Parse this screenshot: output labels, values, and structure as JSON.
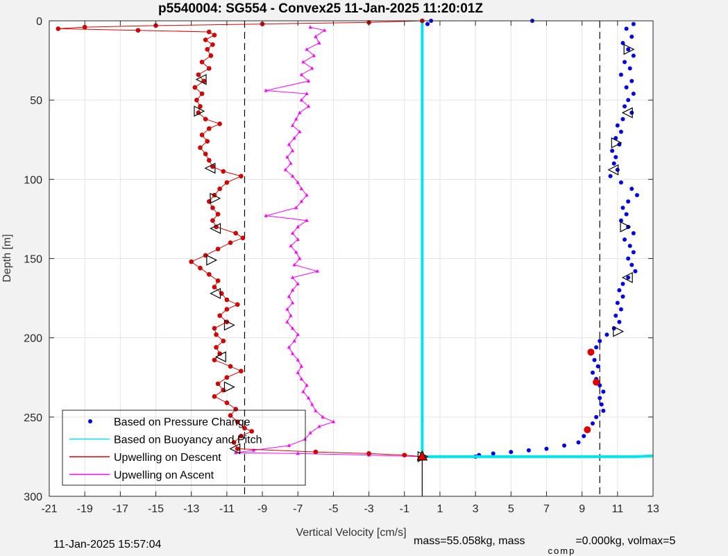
{
  "chart_data": {
    "type": "line",
    "title": "p5540004: SG554 - Convex25 11-Jan-2025 11:20:01Z",
    "xlabel": "Vertical Velocity [cm/s]",
    "ylabel": "Depth [m]",
    "xlim": [
      -21,
      13
    ],
    "ylim": [
      0,
      300
    ],
    "y_reversed": true,
    "grid": true,
    "x_ticks": [
      -21,
      -19,
      -17,
      -15,
      -13,
      -11,
      -9,
      -7,
      -5,
      -3,
      -1,
      1,
      3,
      5,
      7,
      9,
      11,
      13
    ],
    "y_ticks": [
      0,
      50,
      100,
      150,
      200,
      250,
      300
    ],
    "reference_lines": [
      -10,
      0,
      10
    ],
    "legend_placement": "bottom-left",
    "series": [
      {
        "name": "Based on Pressure Change",
        "color": "#0000ee",
        "style": "dots",
        "points": [
          [
            11.9,
            2
          ],
          [
            11.5,
            5
          ],
          [
            11.8,
            10
          ],
          [
            11.3,
            14
          ],
          [
            11.6,
            18
          ],
          [
            11.9,
            22
          ],
          [
            11.4,
            26
          ],
          [
            11.7,
            30
          ],
          [
            11.2,
            34
          ],
          [
            11.8,
            38
          ],
          [
            11.5,
            42
          ],
          [
            11.9,
            46
          ],
          [
            11.6,
            50
          ],
          [
            11.4,
            54
          ],
          [
            11.8,
            58
          ],
          [
            11.3,
            62
          ],
          [
            11.0,
            66
          ],
          [
            11.2,
            70
          ],
          [
            10.9,
            74
          ],
          [
            11.1,
            78
          ],
          [
            10.7,
            82
          ],
          [
            10.9,
            86
          ],
          [
            10.8,
            90
          ],
          [
            11.0,
            94
          ],
          [
            10.6,
            98
          ],
          [
            11.2,
            102
          ],
          [
            11.8,
            106
          ],
          [
            12.1,
            110
          ],
          [
            11.6,
            114
          ],
          [
            11.3,
            118
          ],
          [
            11.5,
            122
          ],
          [
            11.2,
            126
          ],
          [
            11.6,
            130
          ],
          [
            11.9,
            134
          ],
          [
            11.4,
            138
          ],
          [
            11.7,
            142
          ],
          [
            11.9,
            146
          ],
          [
            11.6,
            150
          ],
          [
            11.8,
            154
          ],
          [
            12.0,
            158
          ],
          [
            11.6,
            162
          ],
          [
            11.3,
            166
          ],
          [
            11.1,
            170
          ],
          [
            11.3,
            174
          ],
          [
            11.0,
            178
          ],
          [
            11.2,
            182
          ],
          [
            10.9,
            186
          ],
          [
            11.1,
            190
          ],
          [
            10.8,
            194
          ],
          [
            10.4,
            198
          ],
          [
            10.0,
            202
          ],
          [
            9.8,
            206
          ],
          [
            9.5,
            210
          ],
          [
            9.7,
            214
          ],
          [
            9.9,
            218
          ],
          [
            9.6,
            222
          ],
          [
            9.8,
            226
          ],
          [
            10.0,
            230
          ],
          [
            10.2,
            234
          ],
          [
            10.0,
            238
          ],
          [
            10.1,
            242
          ],
          [
            10.2,
            246
          ],
          [
            9.8,
            250
          ],
          [
            9.6,
            254
          ],
          [
            9.3,
            258
          ],
          [
            9.1,
            262
          ],
          [
            8.8,
            266
          ],
          [
            8.0,
            268
          ],
          [
            7.0,
            270
          ],
          [
            6.0,
            271
          ],
          [
            5.0,
            272
          ],
          [
            4.0,
            273
          ],
          [
            3.2,
            274
          ],
          [
            3.0,
            275
          ],
          [
            6.2,
            0
          ],
          [
            0.5,
            0
          ],
          [
            0.3,
            2
          ]
        ]
      },
      {
        "name": "Based on Buoyancy and Pitch",
        "color": "#00e5ee",
        "style": "line",
        "points": [
          [
            0,
            0
          ],
          [
            0,
            50
          ],
          [
            0,
            100
          ],
          [
            0,
            150
          ],
          [
            0,
            200
          ],
          [
            0,
            250
          ],
          [
            0,
            275
          ],
          [
            4,
            275
          ],
          [
            8,
            275
          ],
          [
            10,
            275
          ],
          [
            12,
            275
          ],
          [
            13,
            274.5
          ]
        ]
      },
      {
        "name": "Upwelling on Descent",
        "color": "#e00000",
        "style": "line-dots",
        "points": [
          [
            0,
            0
          ],
          [
            -3,
            1
          ],
          [
            -9,
            2
          ],
          [
            -15,
            3
          ],
          [
            -19,
            4
          ],
          [
            -20.5,
            5
          ],
          [
            -16,
            6
          ],
          [
            -12,
            7
          ],
          [
            -11.7,
            9
          ],
          [
            -12.2,
            12
          ],
          [
            -11.8,
            15
          ],
          [
            -12.1,
            18
          ],
          [
            -11.9,
            22
          ],
          [
            -12.4,
            26
          ],
          [
            -12.0,
            30
          ],
          [
            -12.6,
            34
          ],
          [
            -12.3,
            38
          ],
          [
            -12.8,
            42
          ],
          [
            -12.4,
            46
          ],
          [
            -12.7,
            50
          ],
          [
            -12.5,
            54
          ],
          [
            -12.6,
            58
          ],
          [
            -12.2,
            62
          ],
          [
            -11.4,
            65
          ],
          [
            -12.0,
            68
          ],
          [
            -12.4,
            72
          ],
          [
            -12.1,
            76
          ],
          [
            -12.5,
            80
          ],
          [
            -12.2,
            84
          ],
          [
            -12.0,
            88
          ],
          [
            -11.8,
            92
          ],
          [
            -11.2,
            95
          ],
          [
            -10.2,
            98
          ],
          [
            -11.0,
            102
          ],
          [
            -11.4,
            106
          ],
          [
            -11.7,
            110
          ],
          [
            -12.0,
            114
          ],
          [
            -11.8,
            118
          ],
          [
            -11.5,
            122
          ],
          [
            -11.8,
            126
          ],
          [
            -11.6,
            130
          ],
          [
            -10.5,
            134
          ],
          [
            -10.1,
            137
          ],
          [
            -10.8,
            140
          ],
          [
            -11.5,
            144
          ],
          [
            -12.2,
            148
          ],
          [
            -13.0,
            152
          ],
          [
            -12.5,
            156
          ],
          [
            -12.0,
            160
          ],
          [
            -11.5,
            164
          ],
          [
            -11.7,
            168
          ],
          [
            -11.3,
            172
          ],
          [
            -11.0,
            176
          ],
          [
            -10.4,
            179
          ],
          [
            -11.0,
            182
          ],
          [
            -11.4,
            186
          ],
          [
            -11.0,
            190
          ],
          [
            -11.7,
            194
          ],
          [
            -11.6,
            198
          ],
          [
            -11.2,
            202
          ],
          [
            -11.6,
            206
          ],
          [
            -11.4,
            210
          ],
          [
            -11.7,
            214
          ],
          [
            -10.8,
            218
          ],
          [
            -10.2,
            221
          ],
          [
            -11.0,
            225
          ],
          [
            -11.5,
            229
          ],
          [
            -11.2,
            233
          ],
          [
            -11.7,
            237
          ],
          [
            -11.0,
            241
          ],
          [
            -10.5,
            245
          ],
          [
            -10.8,
            249
          ],
          [
            -10.4,
            253
          ],
          [
            -10.0,
            257
          ],
          [
            -9.6,
            259
          ],
          [
            -10.2,
            262
          ],
          [
            -10.6,
            266
          ],
          [
            -10.4,
            270
          ],
          [
            -6,
            272
          ],
          [
            -3,
            273
          ],
          [
            -1,
            274
          ],
          [
            0,
            275
          ]
        ]
      },
      {
        "name": "Upwelling on Ascent",
        "color": "#ff00ff",
        "style": "line-dots",
        "points": [
          [
            -6.3,
            4
          ],
          [
            -5.5,
            6
          ],
          [
            -6.0,
            10
          ],
          [
            -5.8,
            14
          ],
          [
            -6.5,
            18
          ],
          [
            -6.1,
            22
          ],
          [
            -6.7,
            26
          ],
          [
            -6.2,
            30
          ],
          [
            -6.8,
            34
          ],
          [
            -6.4,
            38
          ],
          [
            -8.8,
            44
          ],
          [
            -6.5,
            46
          ],
          [
            -6.8,
            50
          ],
          [
            -6.4,
            54
          ],
          [
            -6.9,
            58
          ],
          [
            -7.1,
            62
          ],
          [
            -7.3,
            66
          ],
          [
            -6.9,
            70
          ],
          [
            -7.2,
            74
          ],
          [
            -7.5,
            78
          ],
          [
            -7.3,
            82
          ],
          [
            -7.6,
            86
          ],
          [
            -7.4,
            90
          ],
          [
            -7.7,
            94
          ],
          [
            -7.3,
            98
          ],
          [
            -7.0,
            102
          ],
          [
            -6.8,
            106
          ],
          [
            -6.5,
            110
          ],
          [
            -6.8,
            114
          ],
          [
            -7.1,
            118
          ],
          [
            -8.8,
            123
          ],
          [
            -6.5,
            126
          ],
          [
            -7.0,
            130
          ],
          [
            -7.3,
            134
          ],
          [
            -7.0,
            138
          ],
          [
            -7.4,
            142
          ],
          [
            -7.1,
            146
          ],
          [
            -6.9,
            150
          ],
          [
            -7.2,
            154
          ],
          [
            -5.9,
            158
          ],
          [
            -7.3,
            162
          ],
          [
            -7.0,
            166
          ],
          [
            -7.3,
            170
          ],
          [
            -7.5,
            174
          ],
          [
            -7.3,
            178
          ],
          [
            -7.6,
            182
          ],
          [
            -7.4,
            186
          ],
          [
            -7.6,
            190
          ],
          [
            -7.3,
            194
          ],
          [
            -7.0,
            198
          ],
          [
            -7.2,
            202
          ],
          [
            -7.5,
            206
          ],
          [
            -7.3,
            210
          ],
          [
            -7.0,
            214
          ],
          [
            -6.8,
            218
          ],
          [
            -7.0,
            222
          ],
          [
            -6.8,
            226
          ],
          [
            -6.5,
            230
          ],
          [
            -6.7,
            234
          ],
          [
            -6.4,
            238
          ],
          [
            -6.2,
            242
          ],
          [
            -6.0,
            246
          ],
          [
            -5.6,
            250
          ],
          [
            -5.0,
            253
          ],
          [
            -5.8,
            256
          ],
          [
            -6.3,
            260
          ],
          [
            -6.6,
            264
          ],
          [
            -7.5,
            268
          ],
          [
            -9.5,
            271
          ],
          [
            -10.5,
            272.5
          ],
          [
            -7,
            273
          ],
          [
            -3,
            274
          ],
          [
            0,
            275
          ]
        ]
      }
    ],
    "triangle_markers": [
      [
        11.6,
        18
      ],
      [
        11.6,
        58
      ],
      [
        10.9,
        77
      ],
      [
        10.8,
        94
      ],
      [
        11.4,
        130
      ],
      [
        11.6,
        162
      ],
      [
        11.0,
        196
      ],
      [
        -12.4,
        37
      ],
      [
        -12.6,
        57
      ],
      [
        -11.9,
        93
      ],
      [
        -11.7,
        112
      ],
      [
        -11.6,
        131
      ],
      [
        -11.9,
        151
      ],
      [
        -11.6,
        172
      ],
      [
        -10.9,
        192
      ],
      [
        -11.3,
        212
      ],
      [
        -10.9,
        231
      ],
      [
        -10.5,
        270
      ],
      [
        0,
        275
      ]
    ],
    "red_markers": [
      [
        9.5,
        209
      ],
      [
        9.8,
        228
      ],
      [
        9.3,
        258
      ],
      [
        0,
        275
      ]
    ]
  },
  "footer": {
    "date": "11-Jan-2025 15:57:04",
    "mass_text": "mass=55.058kg, mass",
    "comp_sub": "comp",
    "volmax_text": "=0.000kg, volmax=5"
  }
}
